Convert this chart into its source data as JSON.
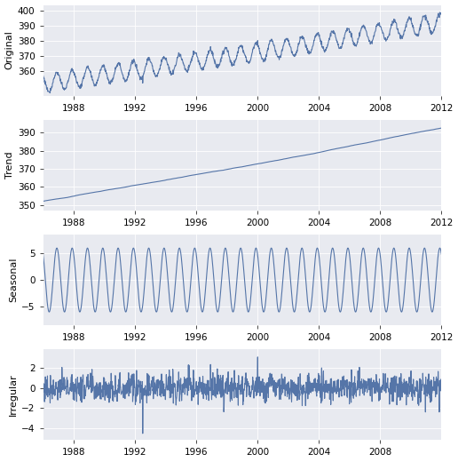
{
  "title": "",
  "background_color": "#e8eaf0",
  "line_color": "#5575a8",
  "line_width": 0.8,
  "fig_width": 5.16,
  "fig_height": 5.2,
  "dpi": 100,
  "start_year": 1986.0,
  "end_year": 2012.0,
  "subplots": [
    {
      "label": "Original",
      "yticks": [
        360,
        370,
        380,
        390,
        400
      ],
      "ylim": [
        344,
        404
      ]
    },
    {
      "label": "Trend",
      "yticks": [
        350,
        360,
        370,
        380,
        390
      ],
      "ylim": [
        347,
        397
      ]
    },
    {
      "label": "Seasonal",
      "yticks": [
        -5,
        0,
        5
      ],
      "ylim": [
        -8.5,
        8.5
      ]
    },
    {
      "label": "Irregular",
      "yticks": [
        -4,
        -2,
        0,
        2
      ],
      "ylim": [
        -5.2,
        3.8
      ]
    }
  ],
  "xticks": [
    1988,
    1992,
    1996,
    2000,
    2004,
    2008,
    2012
  ],
  "tick_fontsize": 7.5,
  "ylabel_fontsize": 8
}
